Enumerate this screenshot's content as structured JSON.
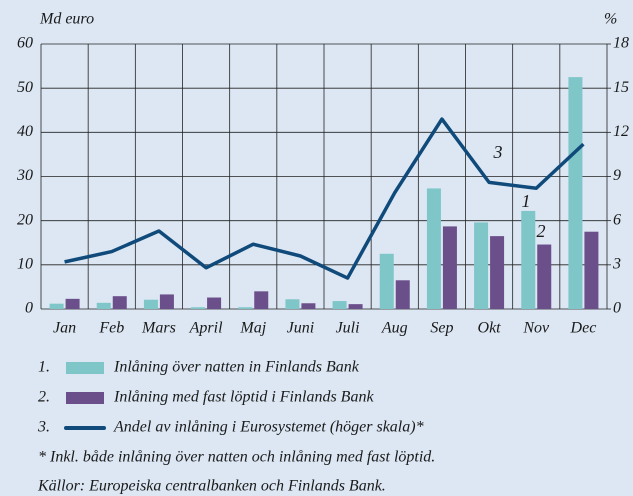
{
  "chart_data": {
    "type": "bar-line",
    "y_label": "Md euro",
    "y2_label": "%",
    "categories": [
      "Jan",
      "Feb",
      "Mars",
      "April",
      "Maj",
      "Juni",
      "Juli",
      "Aug",
      "Sep",
      "Okt",
      "Nov",
      "Dec"
    ],
    "series": [
      {
        "name": "Inlåning över natten in Finlands Bank",
        "color": "#7fc6c9",
        "type": "bar",
        "values": [
          1.2,
          1.4,
          2.1,
          0.4,
          0.4,
          2.2,
          1.8,
          12.5,
          27.3,
          19.6,
          22.2,
          52.5
        ]
      },
      {
        "name": "Inlåning med fast löptid i Finlands Bank",
        "color": "#6b4f8a",
        "type": "bar",
        "values": [
          2.3,
          2.9,
          3.3,
          2.6,
          4.0,
          1.3,
          1.1,
          6.5,
          18.7,
          16.5,
          14.6,
          17.5
        ]
      },
      {
        "name": "Andel av inlåning i Eurosystemet (höger skala)*",
        "color": "#0f4a7a",
        "type": "line",
        "axis": "y2",
        "values": [
          3.2,
          3.9,
          5.3,
          2.8,
          4.4,
          3.6,
          2.1,
          7.9,
          12.9,
          8.6,
          8.2,
          11.2
        ]
      }
    ],
    "legend_markers": [
      "1.",
      "2.",
      "3."
    ],
    "annotations": [
      "1",
      "2",
      "3"
    ],
    "ylim": [
      0,
      60
    ],
    "yticks": [
      0,
      10,
      20,
      30,
      40,
      50,
      60
    ],
    "y2lim": [
      0,
      18
    ],
    "y2ticks": [
      0,
      3,
      6,
      9,
      12,
      15,
      18
    ],
    "grid": true,
    "footnote": "* Inkl. både inlåning över natten och inlåning med fast löptid.",
    "source": "Källor: Europeiska centralbanken och Finlands Bank."
  }
}
